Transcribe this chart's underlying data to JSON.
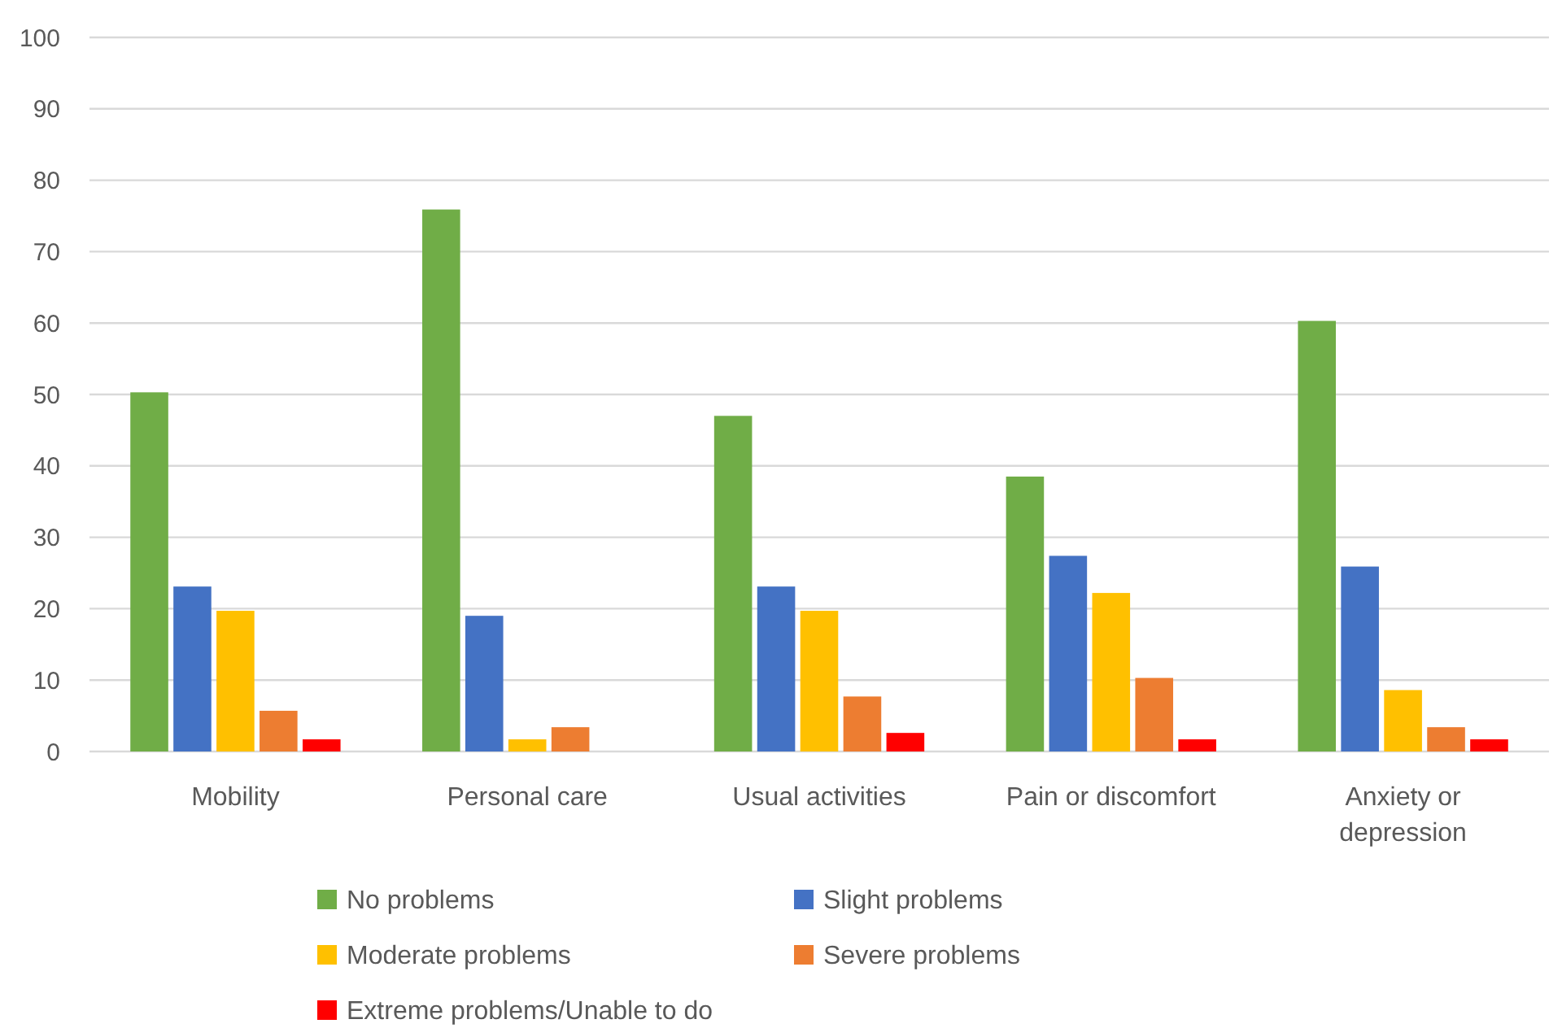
{
  "chart_data": {
    "type": "bar",
    "categories": [
      "Mobility",
      "Personal care",
      "Usual activities",
      "Pain or discomfort",
      "Anxiety or depression"
    ],
    "series": [
      {
        "name": "No problems",
        "color": "#70ad47",
        "values": [
          50.3,
          75.9,
          47.0,
          38.5,
          60.3
        ]
      },
      {
        "name": "Slight problems",
        "color": "#4472c4",
        "values": [
          23.1,
          19.0,
          23.1,
          27.4,
          25.9
        ]
      },
      {
        "name": "Moderate problems",
        "color": "#ffc000",
        "values": [
          19.7,
          1.7,
          19.7,
          22.2,
          8.6
        ]
      },
      {
        "name": "Severe problems",
        "color": "#ed7d31",
        "values": [
          5.7,
          3.4,
          7.7,
          10.3,
          3.4
        ]
      },
      {
        "name": "Extreme problems/Unable to do",
        "color": "#ff0000",
        "values": [
          1.7,
          0,
          2.6,
          1.7,
          1.7
        ]
      }
    ],
    "ylim": [
      0,
      100
    ],
    "yticks": [
      0,
      10,
      20,
      30,
      40,
      50,
      60,
      70,
      80,
      90,
      100
    ],
    "grid": "y",
    "legend": "bottom"
  }
}
